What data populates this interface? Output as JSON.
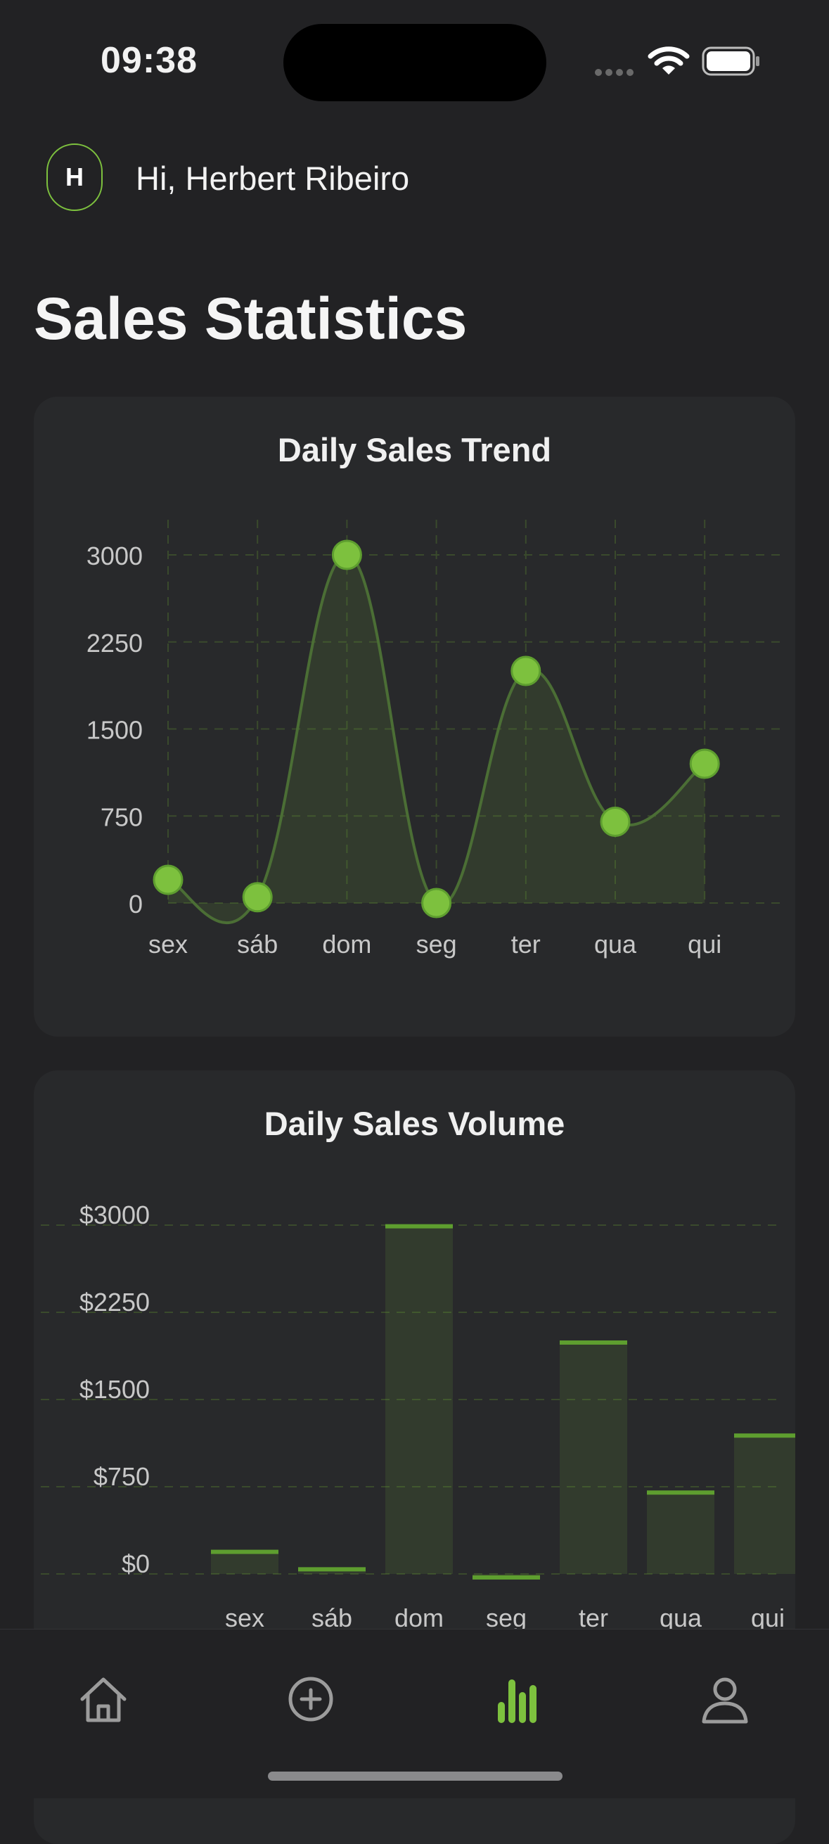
{
  "status": {
    "time": "09:38"
  },
  "header": {
    "avatar_initial": "H",
    "greeting": "Hi, Herbert Ribeiro"
  },
  "page": {
    "title": "Sales Statistics"
  },
  "colors": {
    "accent": "#7dc13e",
    "card": "#28292b",
    "background": "#222224"
  },
  "chart_data": [
    {
      "type": "line",
      "title": "Daily Sales Trend",
      "categories": [
        "sex",
        "sáb",
        "dom",
        "seg",
        "ter",
        "qua",
        "qui"
      ],
      "values": [
        200,
        50,
        3000,
        0,
        2000,
        700,
        1200
      ],
      "yticks": [
        "3000",
        "2250",
        "1500",
        "750",
        "0"
      ],
      "ylim": [
        0,
        3000
      ],
      "grid": true,
      "xlabel": "",
      "ylabel": ""
    },
    {
      "type": "bar",
      "title": "Daily Sales Volume",
      "categories": [
        "sex",
        "sáb",
        "dom",
        "seg",
        "ter",
        "qua",
        "qui"
      ],
      "values": [
        190,
        40,
        2990,
        -30,
        1990,
        700,
        1190
      ],
      "yticks": [
        "$3000",
        "$2250",
        "$1500",
        "$750",
        "$0"
      ],
      "ylim": [
        0,
        3000
      ],
      "grid": true,
      "xlabel": "",
      "ylabel": ""
    }
  ],
  "tab_bar": {
    "items": [
      {
        "name": "home",
        "icon": "home-icon",
        "active": false
      },
      {
        "name": "add",
        "icon": "plus-circle-icon",
        "active": false
      },
      {
        "name": "stats",
        "icon": "bar-chart-icon",
        "active": true
      },
      {
        "name": "profile",
        "icon": "person-icon",
        "active": false
      }
    ]
  }
}
